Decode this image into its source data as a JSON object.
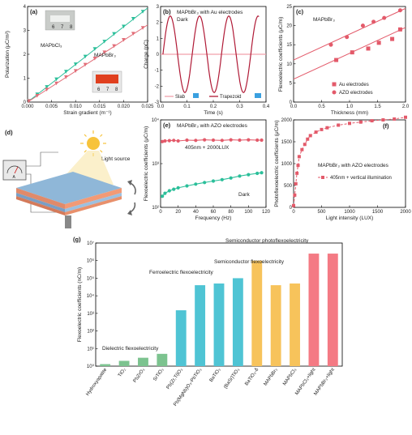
{
  "chart_data": [
    {
      "type": "scatter",
      "panel": "(a)",
      "xlabel": "Strain gradient (m⁻¹)",
      "ylabel": "Polarization (μC/m²)",
      "xlim": [
        0,
        0.025
      ],
      "ylim": [
        0,
        4
      ],
      "xticks": [
        "0.000",
        "0.005",
        "0.010",
        "0.015",
        "0.020",
        "0.025"
      ],
      "yticks": [
        "0",
        "1",
        "2",
        "3",
        "4"
      ],
      "series": [
        {
          "name": "MAPbCl₃",
          "color": "#2bbf9a",
          "marker": "triangle-down",
          "fit": true,
          "x": [
            0.0003,
            0.002,
            0.004,
            0.006,
            0.008,
            0.01,
            0.012,
            0.014,
            0.016,
            0.018,
            0.02,
            0.022,
            0.024
          ],
          "y": [
            0.05,
            0.32,
            0.63,
            0.95,
            1.27,
            1.58,
            1.9,
            2.22,
            2.53,
            2.85,
            3.16,
            3.48,
            3.78
          ]
        },
        {
          "name": "MAPbBr₃",
          "color": "#e26d78",
          "marker": "triangle-down",
          "fit": true,
          "x": [
            0.0003,
            0.002,
            0.004,
            0.006,
            0.008,
            0.01,
            0.012,
            0.014,
            0.016,
            0.018,
            0.02,
            0.022,
            0.024
          ],
          "y": [
            0.04,
            0.26,
            0.52,
            0.78,
            1.04,
            1.3,
            1.56,
            1.82,
            2.08,
            2.34,
            2.6,
            2.86,
            3.1
          ]
        }
      ],
      "scale_labels": [
        "6",
        "7",
        "8"
      ]
    },
    {
      "type": "line",
      "panel": "(b)",
      "title": "MAPbBr₃ with Au electrodes",
      "annotation": "Dark",
      "xlabel": "Time (s)",
      "ylabel": "Charge (pC)",
      "xlim": [
        0,
        0.45
      ],
      "ylim": [
        -3,
        3
      ],
      "xticks": [
        "0.0",
        "0.1",
        "0.2",
        "0.3",
        "0.4"
      ],
      "yticks": [
        "-3",
        "-2",
        "-1",
        "0",
        "1",
        "2",
        "3"
      ],
      "series": [
        {
          "name": "Slab",
          "color": "#f2a0aa",
          "type": "flat",
          "value": 0.0
        },
        {
          "name": "Trapezoid",
          "color": "#b01a36",
          "type": "sine",
          "amplitude": 2.4,
          "period": 0.125
        }
      ]
    },
    {
      "type": "scatter",
      "panel": "(c)",
      "title": "MAPbBr₃",
      "xlabel": "Thickness (mm)",
      "ylabel": "Flexoelectric coefficients (μC/m)",
      "xlim": [
        0,
        2.1
      ],
      "ylim": [
        0,
        25
      ],
      "xticks": [
        "0.0",
        "0.5",
        "1.0",
        "1.5",
        "2.0"
      ],
      "yticks": [
        "0",
        "5",
        "10",
        "15",
        "20",
        "25"
      ],
      "series": [
        {
          "name": "Au electrodes",
          "color": "#e35a6a",
          "marker": "square",
          "fit": [
            6,
            19.5
          ],
          "x": [
            0.8,
            1.1,
            1.4,
            1.6,
            1.85,
            2.0
          ],
          "y": [
            11,
            13,
            14,
            15.5,
            16.5,
            19
          ]
        },
        {
          "name": "AZO electrodes",
          "color": "#e35a6a",
          "marker": "circle",
          "fit": [
            11,
            24.5
          ],
          "x": [
            0.7,
            1.0,
            1.3,
            1.5,
            1.7,
            2.0
          ],
          "y": [
            15,
            17,
            20,
            21,
            22,
            24
          ]
        }
      ]
    },
    {
      "type": "line",
      "panel": "(e)",
      "title": "MAPbBr₃ with AZO electrodes",
      "xlabel": "Frequency (Hz)",
      "ylabel": "Flexoelectric coefficients (μC/m)",
      "xlim": [
        0,
        120
      ],
      "yscale": "log",
      "ylim": [
        100,
        10000
      ],
      "xticks": [
        "0",
        "20",
        "40",
        "60",
        "80",
        "100",
        "120"
      ],
      "yticks": [
        "10²",
        "10³",
        "10⁴"
      ],
      "series": [
        {
          "name": "405nm + 2000LUX",
          "color": "#e35a6a",
          "marker": "circle",
          "x": [
            2,
            5,
            10,
            15,
            20,
            30,
            40,
            50,
            60,
            70,
            80,
            90,
            100,
            110,
            115
          ],
          "y": [
            3200,
            3300,
            3350,
            3400,
            3300,
            3450,
            3400,
            3500,
            3450,
            3400,
            3500,
            3450,
            3500,
            3450,
            3450
          ]
        },
        {
          "name": "Dark",
          "color": "#2bbf9a",
          "marker": "circle",
          "x": [
            2,
            5,
            10,
            15,
            20,
            30,
            40,
            50,
            60,
            70,
            80,
            90,
            100,
            110,
            115
          ],
          "y": [
            180,
            210,
            240,
            260,
            280,
            310,
            340,
            370,
            400,
            430,
            470,
            520,
            560,
            600,
            620
          ]
        }
      ]
    },
    {
      "type": "line",
      "panel": "(f)",
      "title": "MAPbBr₃ with AZO electrodes",
      "xlabel": "Light intensity (LUX)",
      "ylabel": "Photoflexoelectric coefficients (μC/m)",
      "xlim": [
        0,
        2000
      ],
      "ylim": [
        0,
        2000
      ],
      "xticks": [
        "0",
        "500",
        "1000",
        "1500",
        "2000"
      ],
      "yticks": [
        "0",
        "500",
        "1000",
        "1500",
        "2000"
      ],
      "series": [
        {
          "name": "405nm + vertical illumination",
          "color": "#e35a6a",
          "marker": "square",
          "x": [
            0,
            20,
            40,
            60,
            80,
            100,
            150,
            200,
            250,
            300,
            400,
            500,
            600,
            800,
            1000,
            1200,
            1400,
            1600,
            1800,
            2000
          ],
          "y": [
            40,
            280,
            540,
            780,
            960,
            1160,
            1320,
            1440,
            1560,
            1640,
            1720,
            1780,
            1820,
            1880,
            1920,
            1950,
            1980,
            2000,
            2020,
            2060
          ]
        }
      ]
    },
    {
      "type": "bar",
      "panel": "(g)",
      "ylabel": "Flexoelectric coefficients (nC/m)",
      "yscale": "log",
      "ylim": [
        1,
        10000000
      ],
      "yticks": [
        "10⁰",
        "10¹",
        "10²",
        "10³",
        "10⁴",
        "10⁵",
        "10⁶",
        "10⁷"
      ],
      "categories": [
        "Hydroxyapatite",
        "TiO₂",
        "PbZrO₃",
        "SrTiO₃",
        "Pb(Zr,Ti)O₃",
        "Pb(MgNb)O₃-PbTiO₃",
        "BaTiO₃",
        "(BaSr)TiO₃",
        "BaTiO₃-δ",
        "MAPbBr₃",
        "MAPbCl₃",
        "MAPbCl₃+light",
        "MAPbBr₃+light"
      ],
      "values": [
        1.3,
        2,
        3,
        5,
        1500,
        40000,
        50000,
        100000,
        1000000,
        40000,
        50000,
        2500000,
        2500000
      ],
      "groups": [
        {
          "name": "Dielectric flexoelectricity",
          "color": "#7cc38f",
          "indices": [
            0,
            1,
            2,
            3
          ]
        },
        {
          "name": "Ferroelectric flexoelectricity",
          "color": "#4fc4d4",
          "indices": [
            4,
            5,
            6,
            7
          ]
        },
        {
          "name": "Semiconductor flexoelectricity",
          "color": "#f7c35b",
          "indices": [
            8,
            9,
            10
          ]
        },
        {
          "name": "Semiconductor photoflexoelectricity",
          "color": "#f47a84",
          "indices": [
            11,
            12
          ]
        }
      ]
    }
  ],
  "diagram_d": {
    "panel": "(d)",
    "label": "Light source",
    "meter_label": "A"
  }
}
